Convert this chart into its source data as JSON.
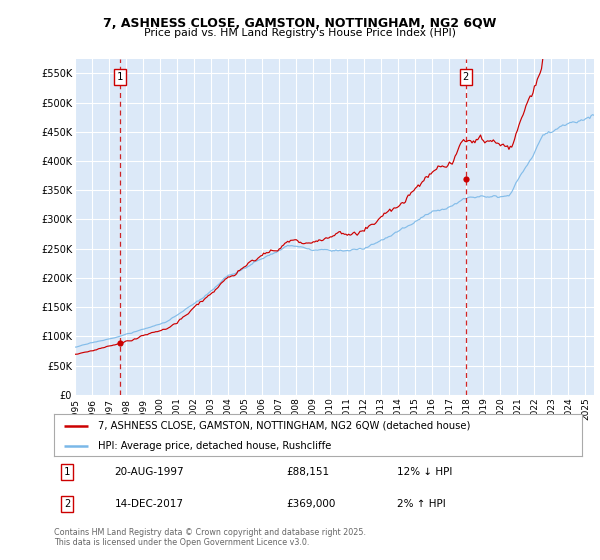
{
  "title": "7, ASHNESS CLOSE, GAMSTON, NOTTINGHAM, NG2 6QW",
  "subtitle": "Price paid vs. HM Land Registry's House Price Index (HPI)",
  "ylim": [
    0,
    575000
  ],
  "yticks": [
    0,
    50000,
    100000,
    150000,
    200000,
    250000,
    300000,
    350000,
    400000,
    450000,
    500000,
    550000
  ],
  "ytick_labels": [
    "£0",
    "£50K",
    "£100K",
    "£150K",
    "£200K",
    "£250K",
    "£300K",
    "£350K",
    "£400K",
    "£450K",
    "£500K",
    "£550K"
  ],
  "xlim_start": 1995.0,
  "xlim_end": 2025.5,
  "xticks": [
    1995,
    1996,
    1997,
    1998,
    1999,
    2000,
    2001,
    2002,
    2003,
    2004,
    2005,
    2006,
    2007,
    2008,
    2009,
    2010,
    2011,
    2012,
    2013,
    2014,
    2015,
    2016,
    2017,
    2018,
    2019,
    2020,
    2021,
    2022,
    2023,
    2024,
    2025
  ],
  "background_color": "#dce9f8",
  "fig_bg_color": "#ffffff",
  "grid_color": "#ffffff",
  "hpi_line_color": "#7ab8e8",
  "price_line_color": "#cc0000",
  "sale1_x": 1997.64,
  "sale1_y": 88151,
  "sale2_x": 2017.96,
  "sale2_y": 369000,
  "legend_label_price": "7, ASHNESS CLOSE, GAMSTON, NOTTINGHAM, NG2 6QW (detached house)",
  "legend_label_hpi": "HPI: Average price, detached house, Rushcliffe",
  "annotation1_date": "20-AUG-1997",
  "annotation1_price": "£88,151",
  "annotation1_hpi": "12% ↓ HPI",
  "annotation2_date": "14-DEC-2017",
  "annotation2_price": "£369,000",
  "annotation2_hpi": "2% ↑ HPI",
  "footer": "Contains HM Land Registry data © Crown copyright and database right 2025.\nThis data is licensed under the Open Government Licence v3.0."
}
